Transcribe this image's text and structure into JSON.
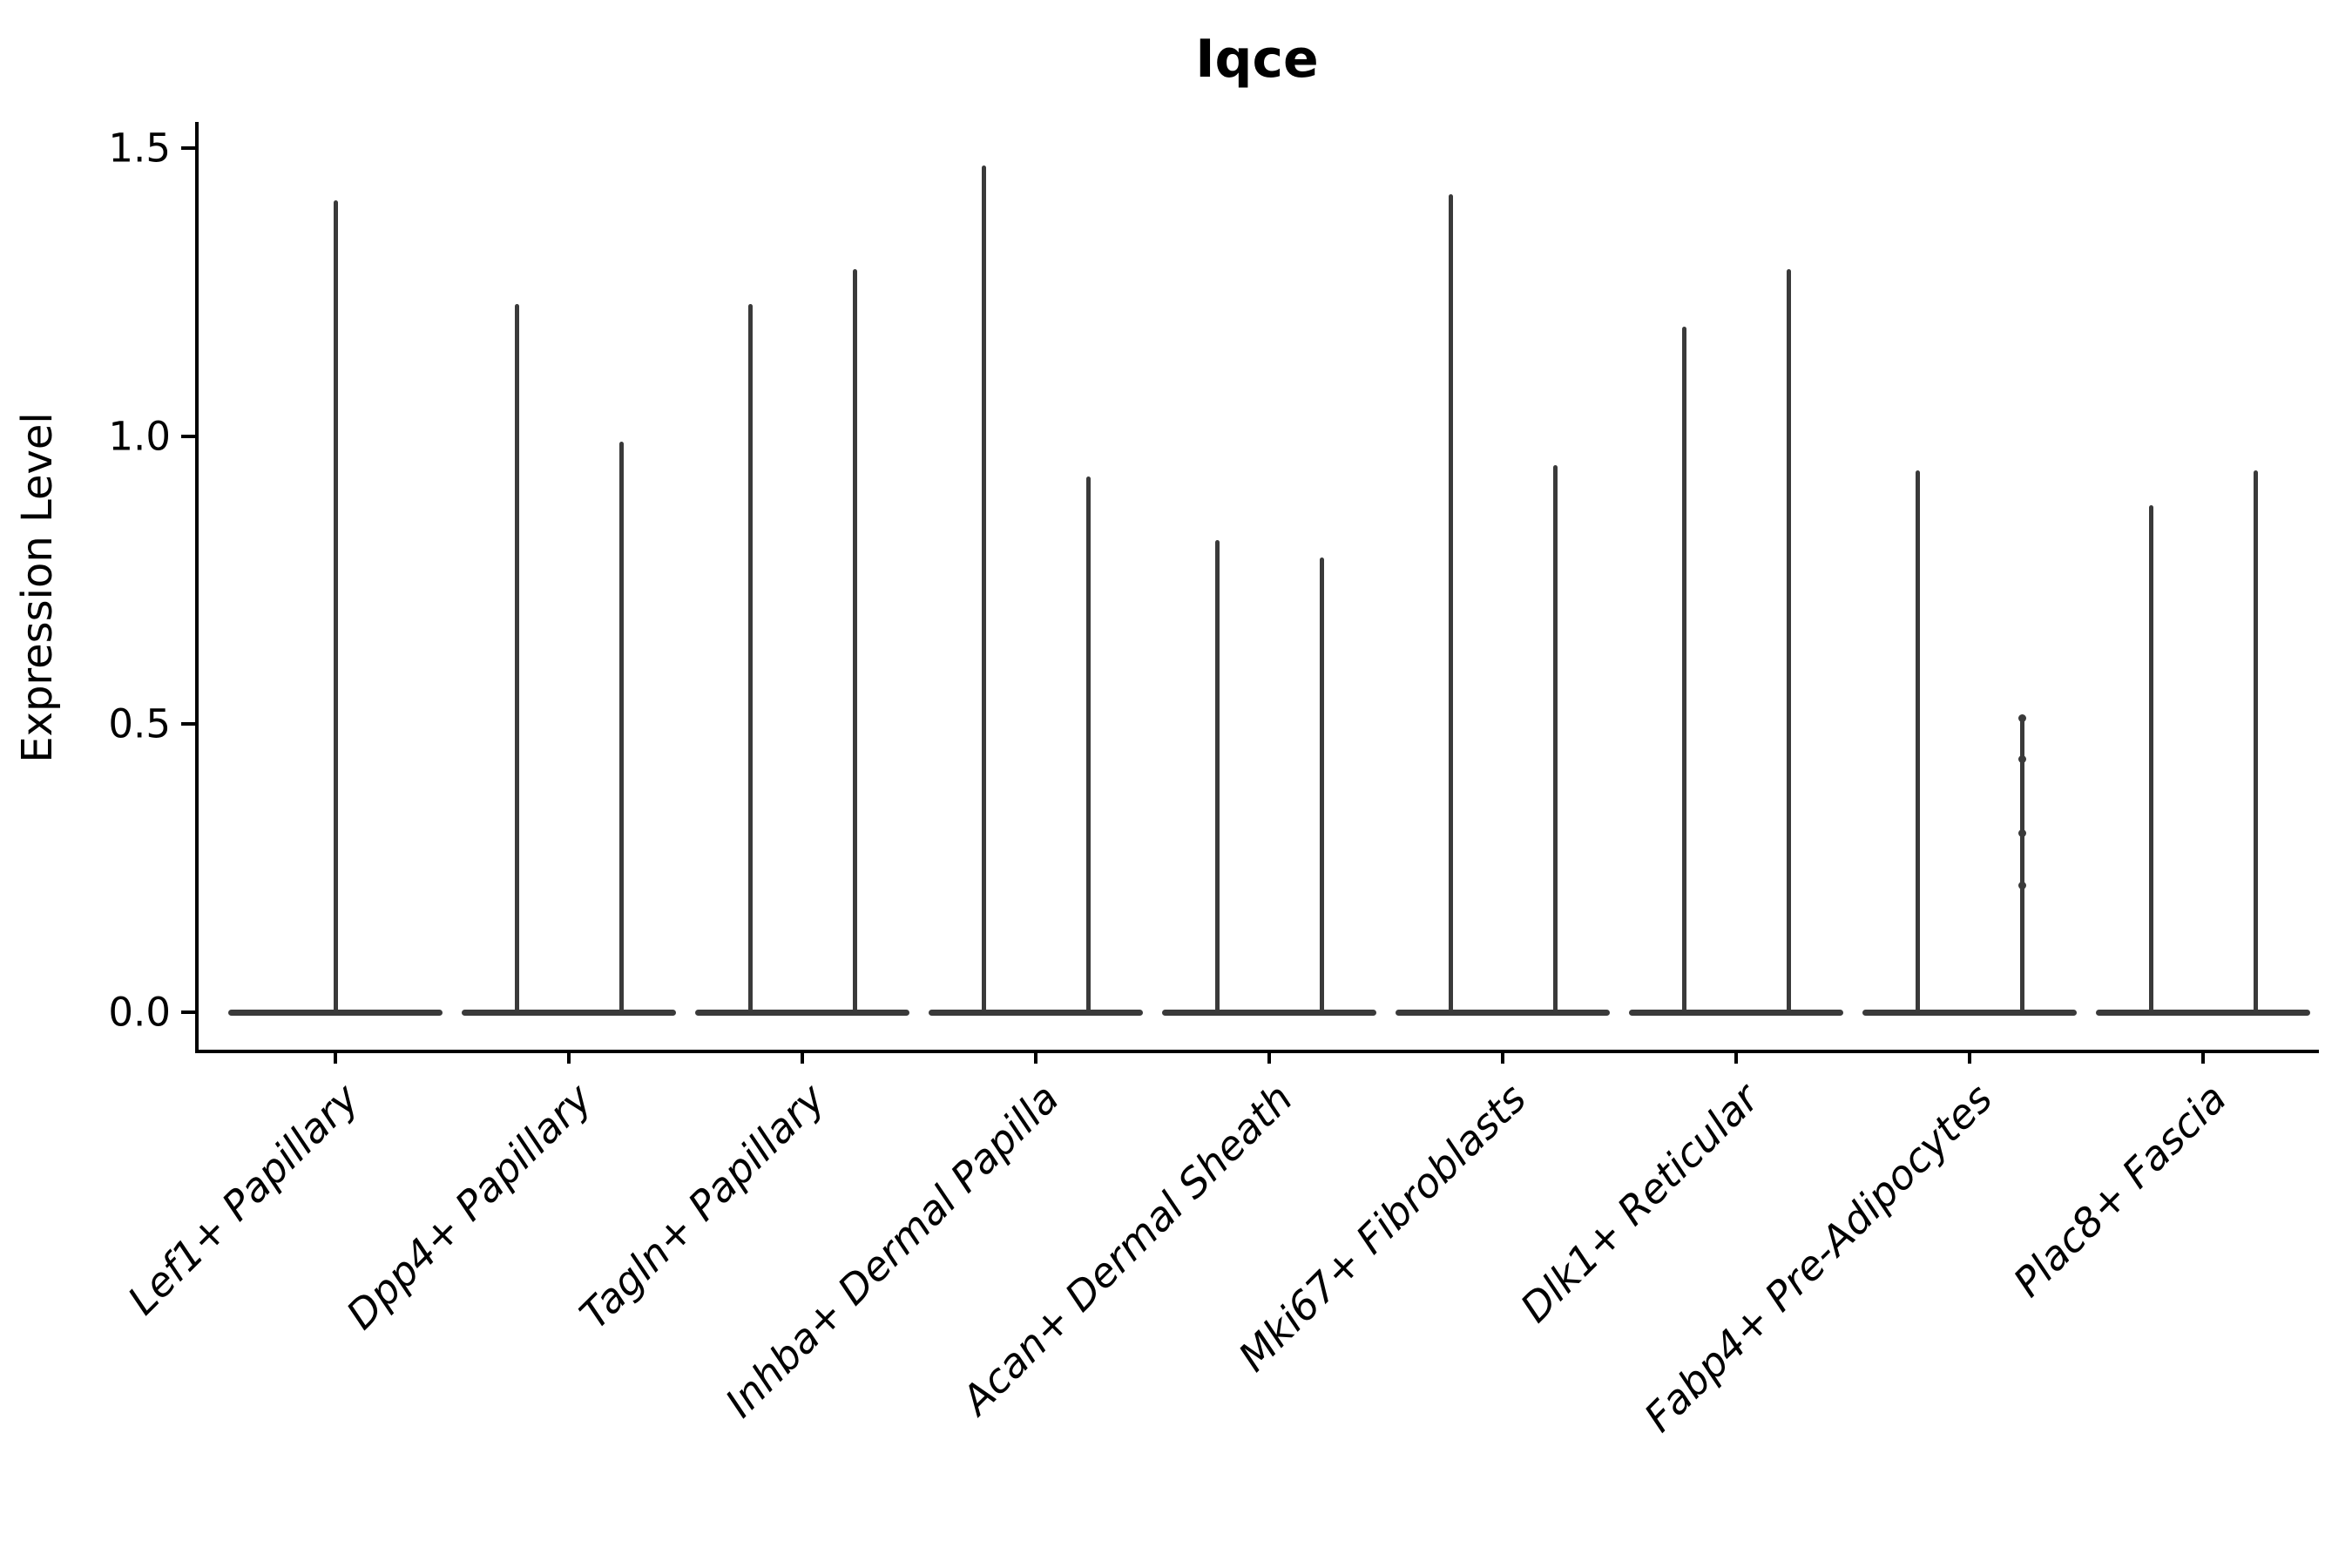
{
  "title": "Iqce",
  "chart_data": {
    "type": "violin",
    "title": "Iqce",
    "xlabel": "",
    "ylabel": "Expression Level",
    "ylim": [
      -0.07,
      1.55
    ],
    "yticks": [
      0.0,
      0.5,
      1.0,
      1.5
    ],
    "ytick_labels": [
      "0.0",
      "0.5",
      "1.0",
      "1.5"
    ],
    "grid": false,
    "legend": "none",
    "baseline_value": 0.0,
    "categories": [
      "Lef1+ Papillary",
      "Dpp4+ Papillary",
      "Tagln+ Papillary",
      "Inhba+ Dermal Papilla",
      "Acan+ Dermal Sheath",
      "Mki67+ Fibroblasts",
      "Dlk1+ Reticular",
      "Fabp4+ Pre-Adipocytes",
      "Plac8+ Fascia"
    ],
    "violins": [
      {
        "category": "Lef1+ Papillary",
        "maxima": [
          1.41
        ]
      },
      {
        "category": "Dpp4+ Papillary",
        "maxima": [
          1.23,
          0.99
        ]
      },
      {
        "category": "Tagln+ Papillary",
        "maxima": [
          1.23,
          1.29
        ]
      },
      {
        "category": "Inhba+ Dermal Papilla",
        "maxima": [
          1.47,
          0.93
        ]
      },
      {
        "category": "Acan+ Dermal Sheath",
        "maxima": [
          0.82,
          0.79
        ]
      },
      {
        "category": "Mki67+ Fibroblasts",
        "maxima": [
          1.42,
          0.95
        ]
      },
      {
        "category": "Dlk1+ Reticular",
        "maxima": [
          1.19,
          1.29
        ]
      },
      {
        "category": "Fabp4+ Pre-Adipocytes",
        "maxima": [
          0.94,
          0.51
        ],
        "points": {
          "violin": 1,
          "values": [
            0.51,
            0.44,
            0.31,
            0.22
          ]
        }
      },
      {
        "category": "Plac8+ Fascia",
        "maxima": [
          0.88,
          0.94
        ]
      }
    ]
  },
  "style": {
    "violin_color": "#3a3a3a",
    "axis_color": "#000000",
    "text_color": "#000000",
    "background": "#ffffff"
  }
}
